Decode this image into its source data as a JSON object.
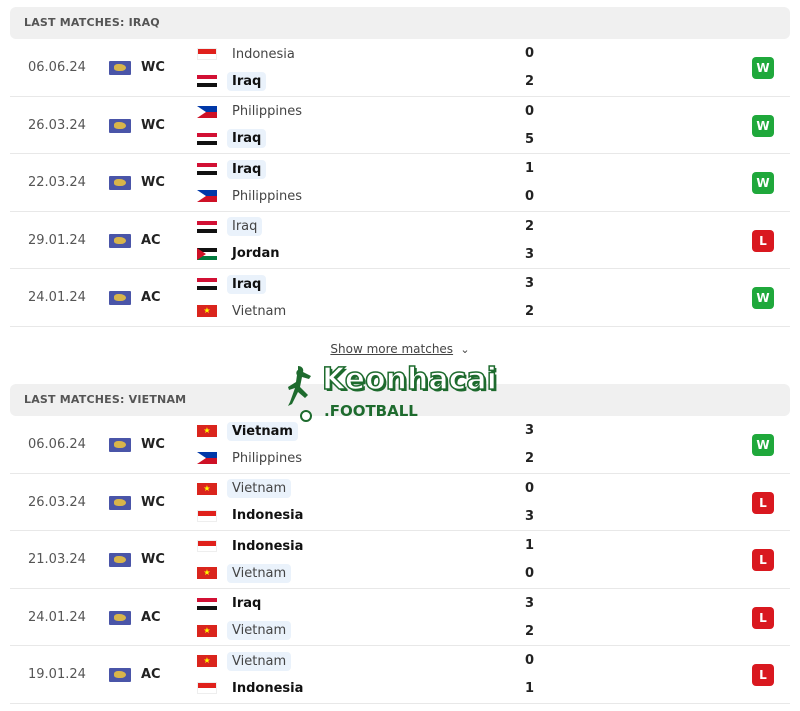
{
  "colors": {
    "win": "#1fa83b",
    "loss": "#d9181f",
    "highlight": "#eaf2fb",
    "brand": "#1e6b2e"
  },
  "sections": [
    {
      "title": "LAST MATCHES: IRAQ",
      "matches": [
        {
          "date": "06.06.24",
          "comp": "WC",
          "home": {
            "name": "Indonesia",
            "flag": "indonesia",
            "score": "0",
            "bold": false,
            "hl": false
          },
          "away": {
            "name": "Iraq",
            "flag": "iraq",
            "score": "2",
            "bold": true,
            "hl": true
          },
          "result": "W"
        },
        {
          "date": "26.03.24",
          "comp": "WC",
          "home": {
            "name": "Philippines",
            "flag": "philippines",
            "score": "0",
            "bold": false,
            "hl": false
          },
          "away": {
            "name": "Iraq",
            "flag": "iraq",
            "score": "5",
            "bold": true,
            "hl": true
          },
          "result": "W"
        },
        {
          "date": "22.03.24",
          "comp": "WC",
          "home": {
            "name": "Iraq",
            "flag": "iraq",
            "score": "1",
            "bold": true,
            "hl": true
          },
          "away": {
            "name": "Philippines",
            "flag": "philippines",
            "score": "0",
            "bold": false,
            "hl": false
          },
          "result": "W"
        },
        {
          "date": "29.01.24",
          "comp": "AC",
          "home": {
            "name": "Iraq",
            "flag": "iraq",
            "score": "2",
            "bold": false,
            "hl": true
          },
          "away": {
            "name": "Jordan",
            "flag": "jordan",
            "score": "3",
            "bold": true,
            "hl": false
          },
          "result": "L"
        },
        {
          "date": "24.01.24",
          "comp": "AC",
          "home": {
            "name": "Iraq",
            "flag": "iraq",
            "score": "3",
            "bold": true,
            "hl": true
          },
          "away": {
            "name": "Vietnam",
            "flag": "vietnam",
            "score": "2",
            "bold": false,
            "hl": false
          },
          "result": "W"
        }
      ]
    },
    {
      "title": "LAST MATCHES: VIETNAM",
      "matches": [
        {
          "date": "06.06.24",
          "comp": "WC",
          "home": {
            "name": "Vietnam",
            "flag": "vietnam",
            "score": "3",
            "bold": true,
            "hl": true
          },
          "away": {
            "name": "Philippines",
            "flag": "philippines",
            "score": "2",
            "bold": false,
            "hl": false
          },
          "result": "W"
        },
        {
          "date": "26.03.24",
          "comp": "WC",
          "home": {
            "name": "Vietnam",
            "flag": "vietnam",
            "score": "0",
            "bold": false,
            "hl": true
          },
          "away": {
            "name": "Indonesia",
            "flag": "indonesia",
            "score": "3",
            "bold": true,
            "hl": false
          },
          "result": "L"
        },
        {
          "date": "21.03.24",
          "comp": "WC",
          "home": {
            "name": "Indonesia",
            "flag": "indonesia",
            "score": "1",
            "bold": true,
            "hl": false
          },
          "away": {
            "name": "Vietnam",
            "flag": "vietnam",
            "score": "0",
            "bold": false,
            "hl": true
          },
          "result": "L"
        },
        {
          "date": "24.01.24",
          "comp": "AC",
          "home": {
            "name": "Iraq",
            "flag": "iraq",
            "score": "3",
            "bold": true,
            "hl": false
          },
          "away": {
            "name": "Vietnam",
            "flag": "vietnam",
            "score": "2",
            "bold": false,
            "hl": true
          },
          "result": "L"
        },
        {
          "date": "19.01.24",
          "comp": "AC",
          "home": {
            "name": "Vietnam",
            "flag": "vietnam",
            "score": "0",
            "bold": false,
            "hl": true
          },
          "away": {
            "name": "Indonesia",
            "flag": "indonesia",
            "score": "1",
            "bold": true,
            "hl": false
          },
          "result": "L"
        }
      ]
    }
  ],
  "show_more": {
    "label": "Show more matches",
    "icon": "chevron-down-icon"
  },
  "watermark": {
    "text": "Keonhacai",
    "sub": ".FOOTBALL"
  }
}
